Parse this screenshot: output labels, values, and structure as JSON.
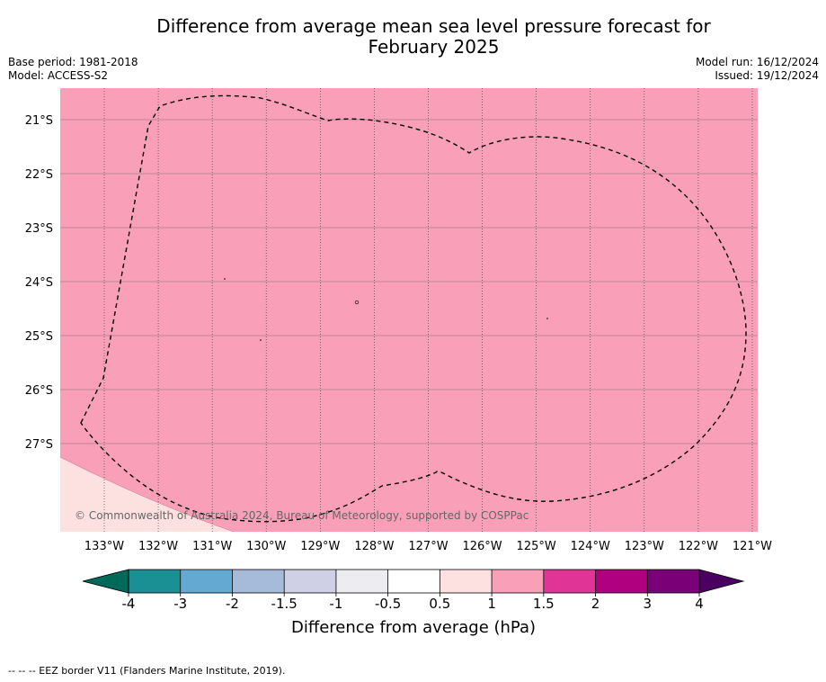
{
  "title_line1": "Difference from average mean sea level pressure forecast for",
  "title_line2": "February 2025",
  "meta_left": {
    "line1": "Base period: 1981-2018",
    "line2": "Model: ACCESS-S2"
  },
  "meta_right": {
    "line1": "Model run: 16/12/2024",
    "line2": "Issued: 19/12/2024"
  },
  "map": {
    "lat_labels": [
      "21°S",
      "22°S",
      "23°S",
      "24°S",
      "25°S",
      "26°S",
      "27°S"
    ],
    "lon_labels": [
      "133°W",
      "132°W",
      "131°W",
      "130°W",
      "129°W",
      "128°W",
      "127°W",
      "126°W",
      "125°W",
      "124°W",
      "123°W",
      "122°W",
      "121°W"
    ],
    "copyright": "© Commonwealth of Australia 2024, Bureau of Meteorology, supported by COSPPac",
    "background_color": "#f9a0b8",
    "corner_color": "#fde0e0"
  },
  "colorbar": {
    "ticks": [
      "-4",
      "-3",
      "-2",
      "-1.5",
      "-1",
      "-0.5",
      "0.5",
      "1",
      "1.5",
      "2",
      "3",
      "4"
    ],
    "colors": [
      "#1a8f94",
      "#64a9d1",
      "#a6bad9",
      "#cfd0e6",
      "#ececf1",
      "#ffffff",
      "#fde0e0",
      "#f9a0b8",
      "#e03597",
      "#b0007f",
      "#7a0077"
    ],
    "under_color": "#006a5a",
    "over_color": "#4a0060",
    "title": "Difference from average (hPa)"
  },
  "footer": "--  --  -- EEZ border V11 (Flanders Marine Institute, 2019)."
}
